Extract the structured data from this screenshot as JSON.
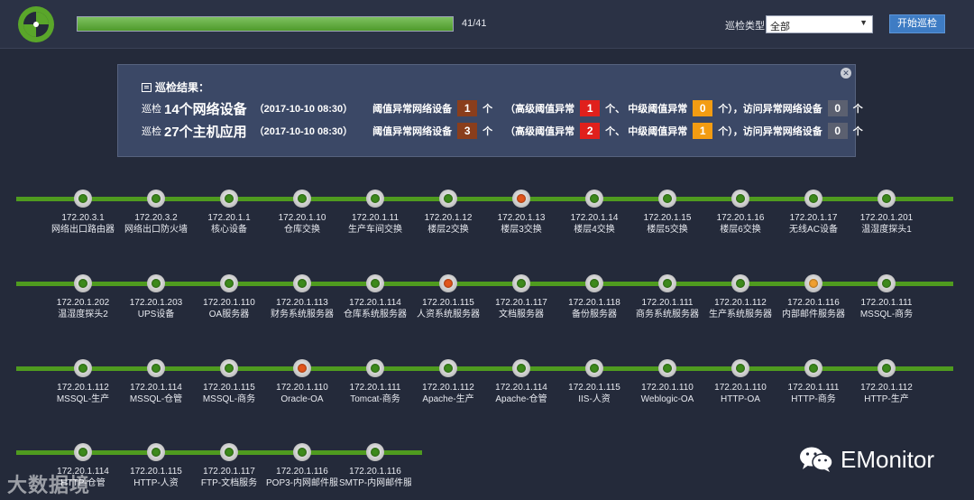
{
  "header": {
    "progress_percent": 100,
    "progress_text": "41/41",
    "type_label": "巡检类型",
    "type_value": "全部",
    "start_button": "开始巡检"
  },
  "panel": {
    "title": "巡检结果：",
    "rows": [
      {
        "prefix": "巡检",
        "target": "14个网络设备",
        "time": "（2017-10-10 08:30）",
        "label_a": "阈值异常网络设备",
        "count_a": "1",
        "unit": "个",
        "label_b": "（高级阈值异常",
        "count_b": "1",
        "label_c": "个、 中级阈值异常",
        "count_c": "0",
        "label_d": "个），访问异常网络设备",
        "count_d": "0"
      },
      {
        "prefix": "巡检",
        "target": "27个主机应用",
        "time": "（2017-10-10 08:30）",
        "label_a": "阈值异常网络设备",
        "count_a": "3",
        "unit": "个",
        "label_b": "（高级阈值异常",
        "count_b": "2",
        "label_c": "个、 中级阈值异常",
        "count_c": "1",
        "label_d": "个），访问异常网络设备",
        "count_d": "0"
      }
    ]
  },
  "colors": {
    "ok": "#3d8a1c",
    "critical": "#e2561c",
    "warning": "#f0a030",
    "line": "#4f9b1f"
  },
  "node_rows": [
    [
      {
        "ip": "172.20.3.1",
        "name": "网络出口路由器",
        "status": "ok"
      },
      {
        "ip": "172.20.3.2",
        "name": "网络出口防火墙",
        "status": "ok"
      },
      {
        "ip": "172.20.1.1",
        "name": "核心设备",
        "status": "ok"
      },
      {
        "ip": "172.20.1.10",
        "name": "仓库交换",
        "status": "ok"
      },
      {
        "ip": "172.20.1.11",
        "name": "生产车间交换",
        "status": "ok"
      },
      {
        "ip": "172.20.1.12",
        "name": "楼层2交换",
        "status": "ok"
      },
      {
        "ip": "172.20.1.13",
        "name": "楼层3交换",
        "status": "critical"
      },
      {
        "ip": "172.20.1.14",
        "name": "楼层4交换",
        "status": "ok"
      },
      {
        "ip": "172.20.1.15",
        "name": "楼层5交换",
        "status": "ok"
      },
      {
        "ip": "172.20.1.16",
        "name": "楼层6交换",
        "status": "ok"
      },
      {
        "ip": "172.20.1.17",
        "name": "无线AC设备",
        "status": "ok"
      },
      {
        "ip": "172.20.1.201",
        "name": "温湿度探头1",
        "status": "ok"
      }
    ],
    [
      {
        "ip": "172.20.1.202",
        "name": "温湿度探头2",
        "status": "ok"
      },
      {
        "ip": "172.20.1.203",
        "name": "UPS设备",
        "status": "ok"
      },
      {
        "ip": "172.20.1.110",
        "name": "OA服务器",
        "status": "ok"
      },
      {
        "ip": "172.20.1.113",
        "name": "财务系统服务器",
        "status": "ok"
      },
      {
        "ip": "172.20.1.114",
        "name": "仓库系统服务器",
        "status": "ok"
      },
      {
        "ip": "172.20.1.115",
        "name": "人资系统服务器",
        "status": "critical"
      },
      {
        "ip": "172.20.1.117",
        "name": "文档服务器",
        "status": "ok"
      },
      {
        "ip": "172.20.1.118",
        "name": "备份服务器",
        "status": "ok"
      },
      {
        "ip": "172.20.1.111",
        "name": "商务系统服务器",
        "status": "ok"
      },
      {
        "ip": "172.20.1.112",
        "name": "生产系统服务器",
        "status": "ok"
      },
      {
        "ip": "172.20.1.116",
        "name": "内部邮件服务器",
        "status": "warning"
      },
      {
        "ip": "172.20.1.111",
        "name": "MSSQL-商务",
        "status": "ok"
      }
    ],
    [
      {
        "ip": "172.20.1.112",
        "name": "MSSQL-生产",
        "status": "ok"
      },
      {
        "ip": "172.20.1.114",
        "name": "MSSQL-仓管",
        "status": "ok"
      },
      {
        "ip": "172.20.1.115",
        "name": "MSSQL-商务",
        "status": "ok"
      },
      {
        "ip": "172.20.1.110",
        "name": "Oracle-OA",
        "status": "critical"
      },
      {
        "ip": "172.20.1.111",
        "name": "Tomcat-商务",
        "status": "ok"
      },
      {
        "ip": "172.20.1.112",
        "name": "Apache-生产",
        "status": "ok"
      },
      {
        "ip": "172.20.1.114",
        "name": "Apache-仓管",
        "status": "ok"
      },
      {
        "ip": "172.20.1.115",
        "name": "IIS-人资",
        "status": "ok"
      },
      {
        "ip": "172.20.1.110",
        "name": "Weblogic-OA",
        "status": "ok"
      },
      {
        "ip": "172.20.1.110",
        "name": "HTTP-OA",
        "status": "ok"
      },
      {
        "ip": "172.20.1.111",
        "name": "HTTP-商务",
        "status": "ok"
      },
      {
        "ip": "172.20.1.112",
        "name": "HTTP-生产",
        "status": "ok"
      }
    ],
    [
      {
        "ip": "172.20.1.114",
        "name": "HTTP-仓管",
        "status": "ok"
      },
      {
        "ip": "172.20.1.115",
        "name": "HTTP-人资",
        "status": "ok"
      },
      {
        "ip": "172.20.1.117",
        "name": "FTP-文档服务",
        "status": "ok"
      },
      {
        "ip": "172.20.1.116",
        "name": "POP3-内网邮件服...",
        "status": "ok"
      },
      {
        "ip": "172.20.1.116",
        "name": "SMTP-内网邮件服...",
        "status": "ok"
      }
    ]
  ],
  "watermark_left": "大数据境",
  "watermark_right": "EMonitor"
}
